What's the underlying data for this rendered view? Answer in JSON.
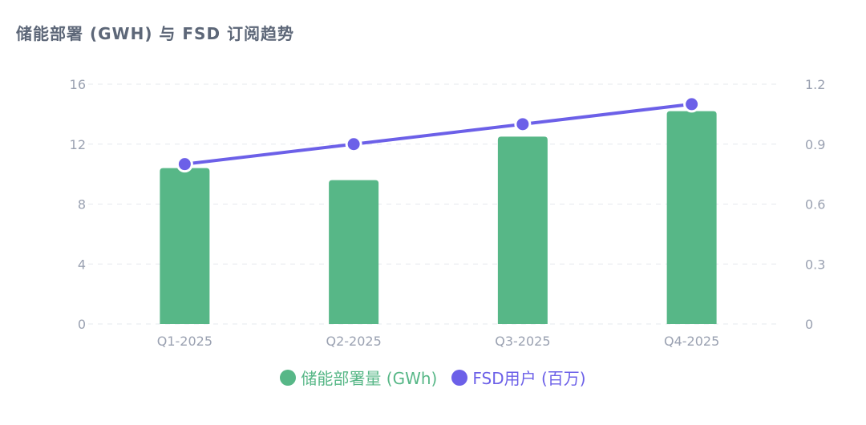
{
  "title": "储能部署 (GWH) 与 FSD 订阅趋势",
  "colors": {
    "bar": "#57b787",
    "line": "#6c60e8",
    "grid": "#e6e8ee",
    "axis_text": "#9aa1b1",
    "title": "#5d6778"
  },
  "chart_data": {
    "type": "bar",
    "categories": [
      "Q1-2025",
      "Q2-2025",
      "Q3-2025",
      "Q4-2025"
    ],
    "series": [
      {
        "name": "储能部署量 (GWh)",
        "type": "bar",
        "axis": "left",
        "values": [
          10.4,
          9.6,
          12.5,
          14.2
        ]
      },
      {
        "name": "FSD用户 (百万)",
        "type": "line",
        "axis": "right",
        "values": [
          0.8,
          0.9,
          1.0,
          1.1
        ]
      }
    ],
    "y_left": {
      "ticks": [
        "0",
        "4",
        "8",
        "12",
        "16"
      ],
      "ylim": [
        0,
        16
      ]
    },
    "y_right": {
      "ticks": [
        "0",
        "0.3",
        "0.6",
        "0.9",
        "1.2"
      ],
      "ylim": [
        0,
        1.2
      ]
    },
    "grid": true,
    "legend_position": "bottom"
  }
}
